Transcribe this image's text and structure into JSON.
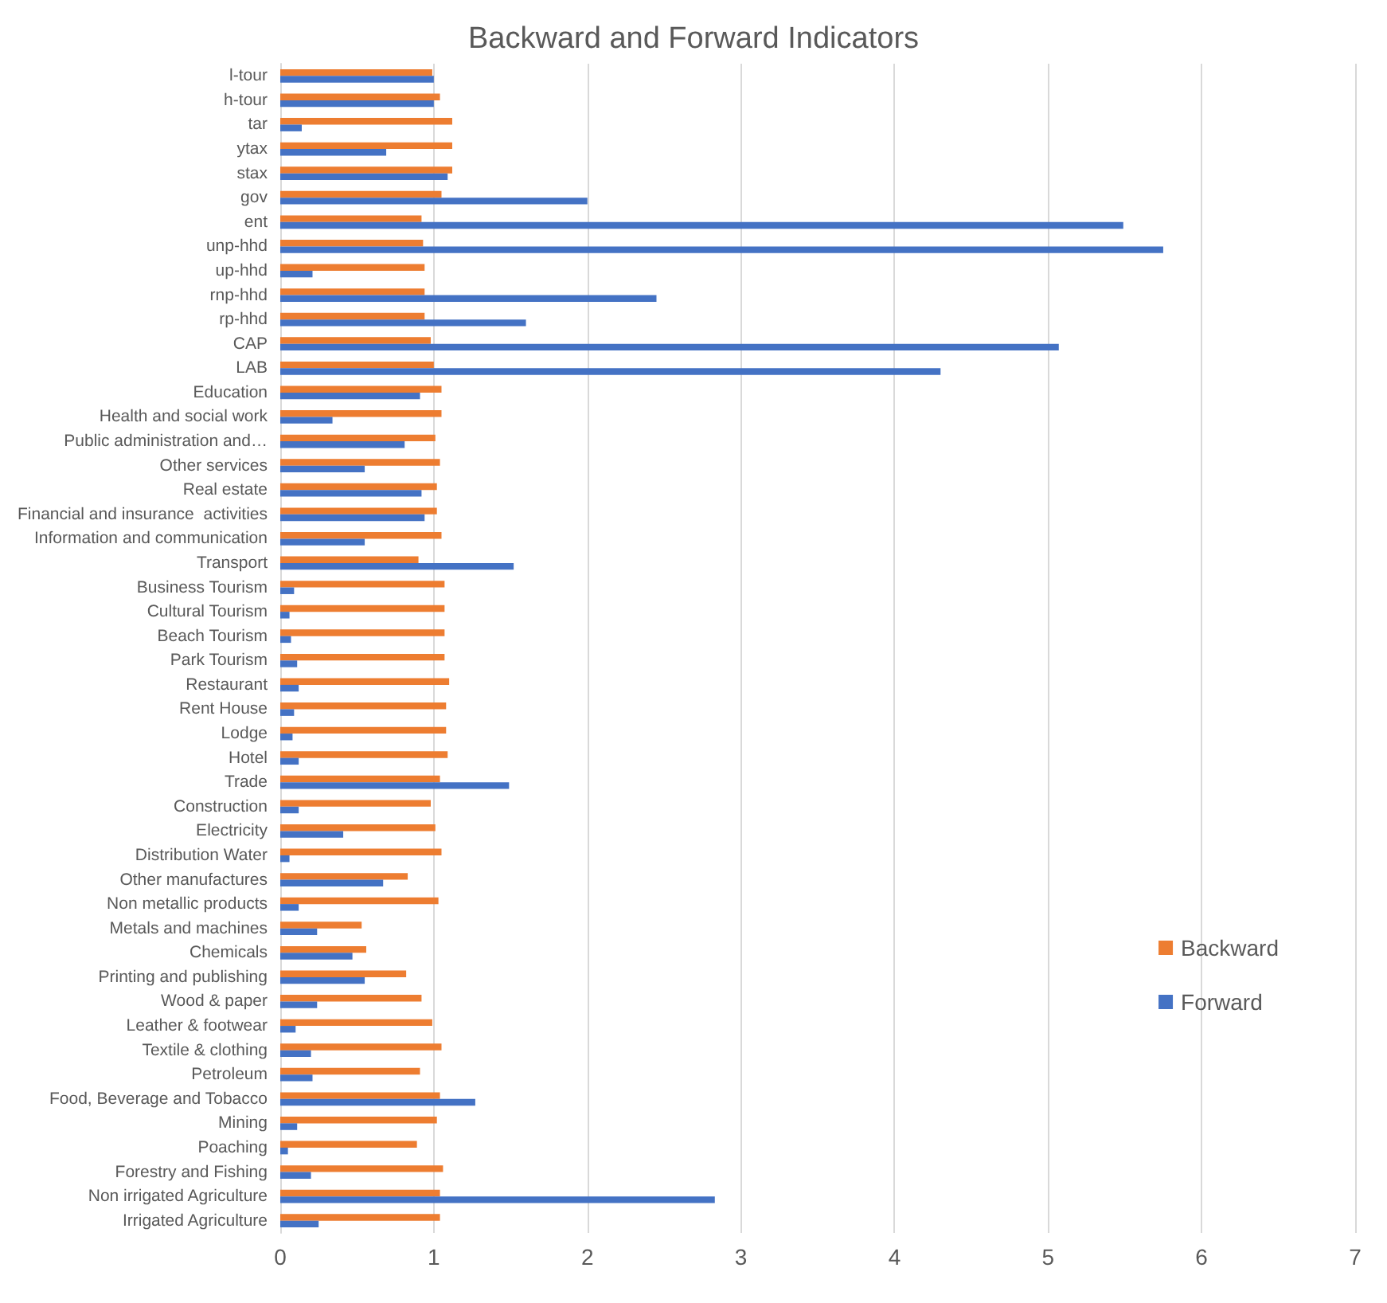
{
  "chart_data": {
    "type": "bar",
    "orientation": "horizontal",
    "title": "Backward and Forward Indicators",
    "categories": [
      "l-tour",
      "h-tour",
      "tar",
      "ytax",
      "stax",
      "gov",
      "ent",
      "unp-hhd",
      "up-hhd",
      "rnp-hhd",
      "rp-hhd",
      "CAP",
      "LAB",
      "Education",
      "Health and social work",
      "Public administration and…",
      "Other services",
      "Real estate",
      "Financial and insurance  activities",
      "Information and communication",
      "Transport",
      "Business Tourism",
      "Cultural Tourism",
      "Beach Tourism",
      "Park Tourism",
      "Restaurant",
      "Rent House",
      "Lodge",
      "Hotel",
      "Trade",
      "Construction",
      "Electricity",
      "Distribution Water",
      "Other manufactures",
      "Non metallic products",
      "Metals and machines",
      "Chemicals",
      "Printing and publishing",
      "Wood & paper",
      "Leather & footwear",
      "Textile & clothing",
      "Petroleum",
      "Food, Beverage and Tobacco",
      "Mining",
      "Poaching",
      "Forestry and Fishing",
      "Non irrigated Agriculture",
      "Irrigated Agriculture"
    ],
    "series": [
      {
        "name": "Backward",
        "color": "#ed7d31",
        "values": [
          0.99,
          1.04,
          1.12,
          1.12,
          1.12,
          1.05,
          0.92,
          0.93,
          0.94,
          0.94,
          0.94,
          0.98,
          1.0,
          1.05,
          1.05,
          1.01,
          1.04,
          1.02,
          1.02,
          1.05,
          0.9,
          1.07,
          1.07,
          1.07,
          1.07,
          1.1,
          1.08,
          1.08,
          1.09,
          1.04,
          0.98,
          1.01,
          1.05,
          0.83,
          1.03,
          0.53,
          0.56,
          0.82,
          0.92,
          0.99,
          1.05,
          0.91,
          1.04,
          1.02,
          0.89,
          1.06,
          1.04,
          1.04
        ]
      },
      {
        "name": "Forward",
        "color": "#4472c4",
        "values": [
          1.0,
          1.0,
          0.14,
          0.69,
          1.09,
          2.0,
          5.49,
          5.75,
          0.21,
          2.45,
          1.6,
          5.07,
          4.3,
          0.91,
          0.34,
          0.81,
          0.55,
          0.92,
          0.94,
          0.55,
          1.52,
          0.09,
          0.06,
          0.07,
          0.11,
          0.12,
          0.09,
          0.08,
          0.12,
          1.49,
          0.12,
          0.41,
          0.06,
          0.67,
          0.12,
          0.24,
          0.47,
          0.55,
          0.24,
          0.1,
          0.2,
          0.21,
          1.27,
          0.11,
          0.05,
          0.2,
          2.83,
          0.25
        ]
      }
    ],
    "xlim": [
      0,
      7
    ],
    "xticks": [
      0,
      1,
      2,
      3,
      4,
      5,
      6,
      7
    ],
    "grid": "x",
    "legend": "right"
  }
}
